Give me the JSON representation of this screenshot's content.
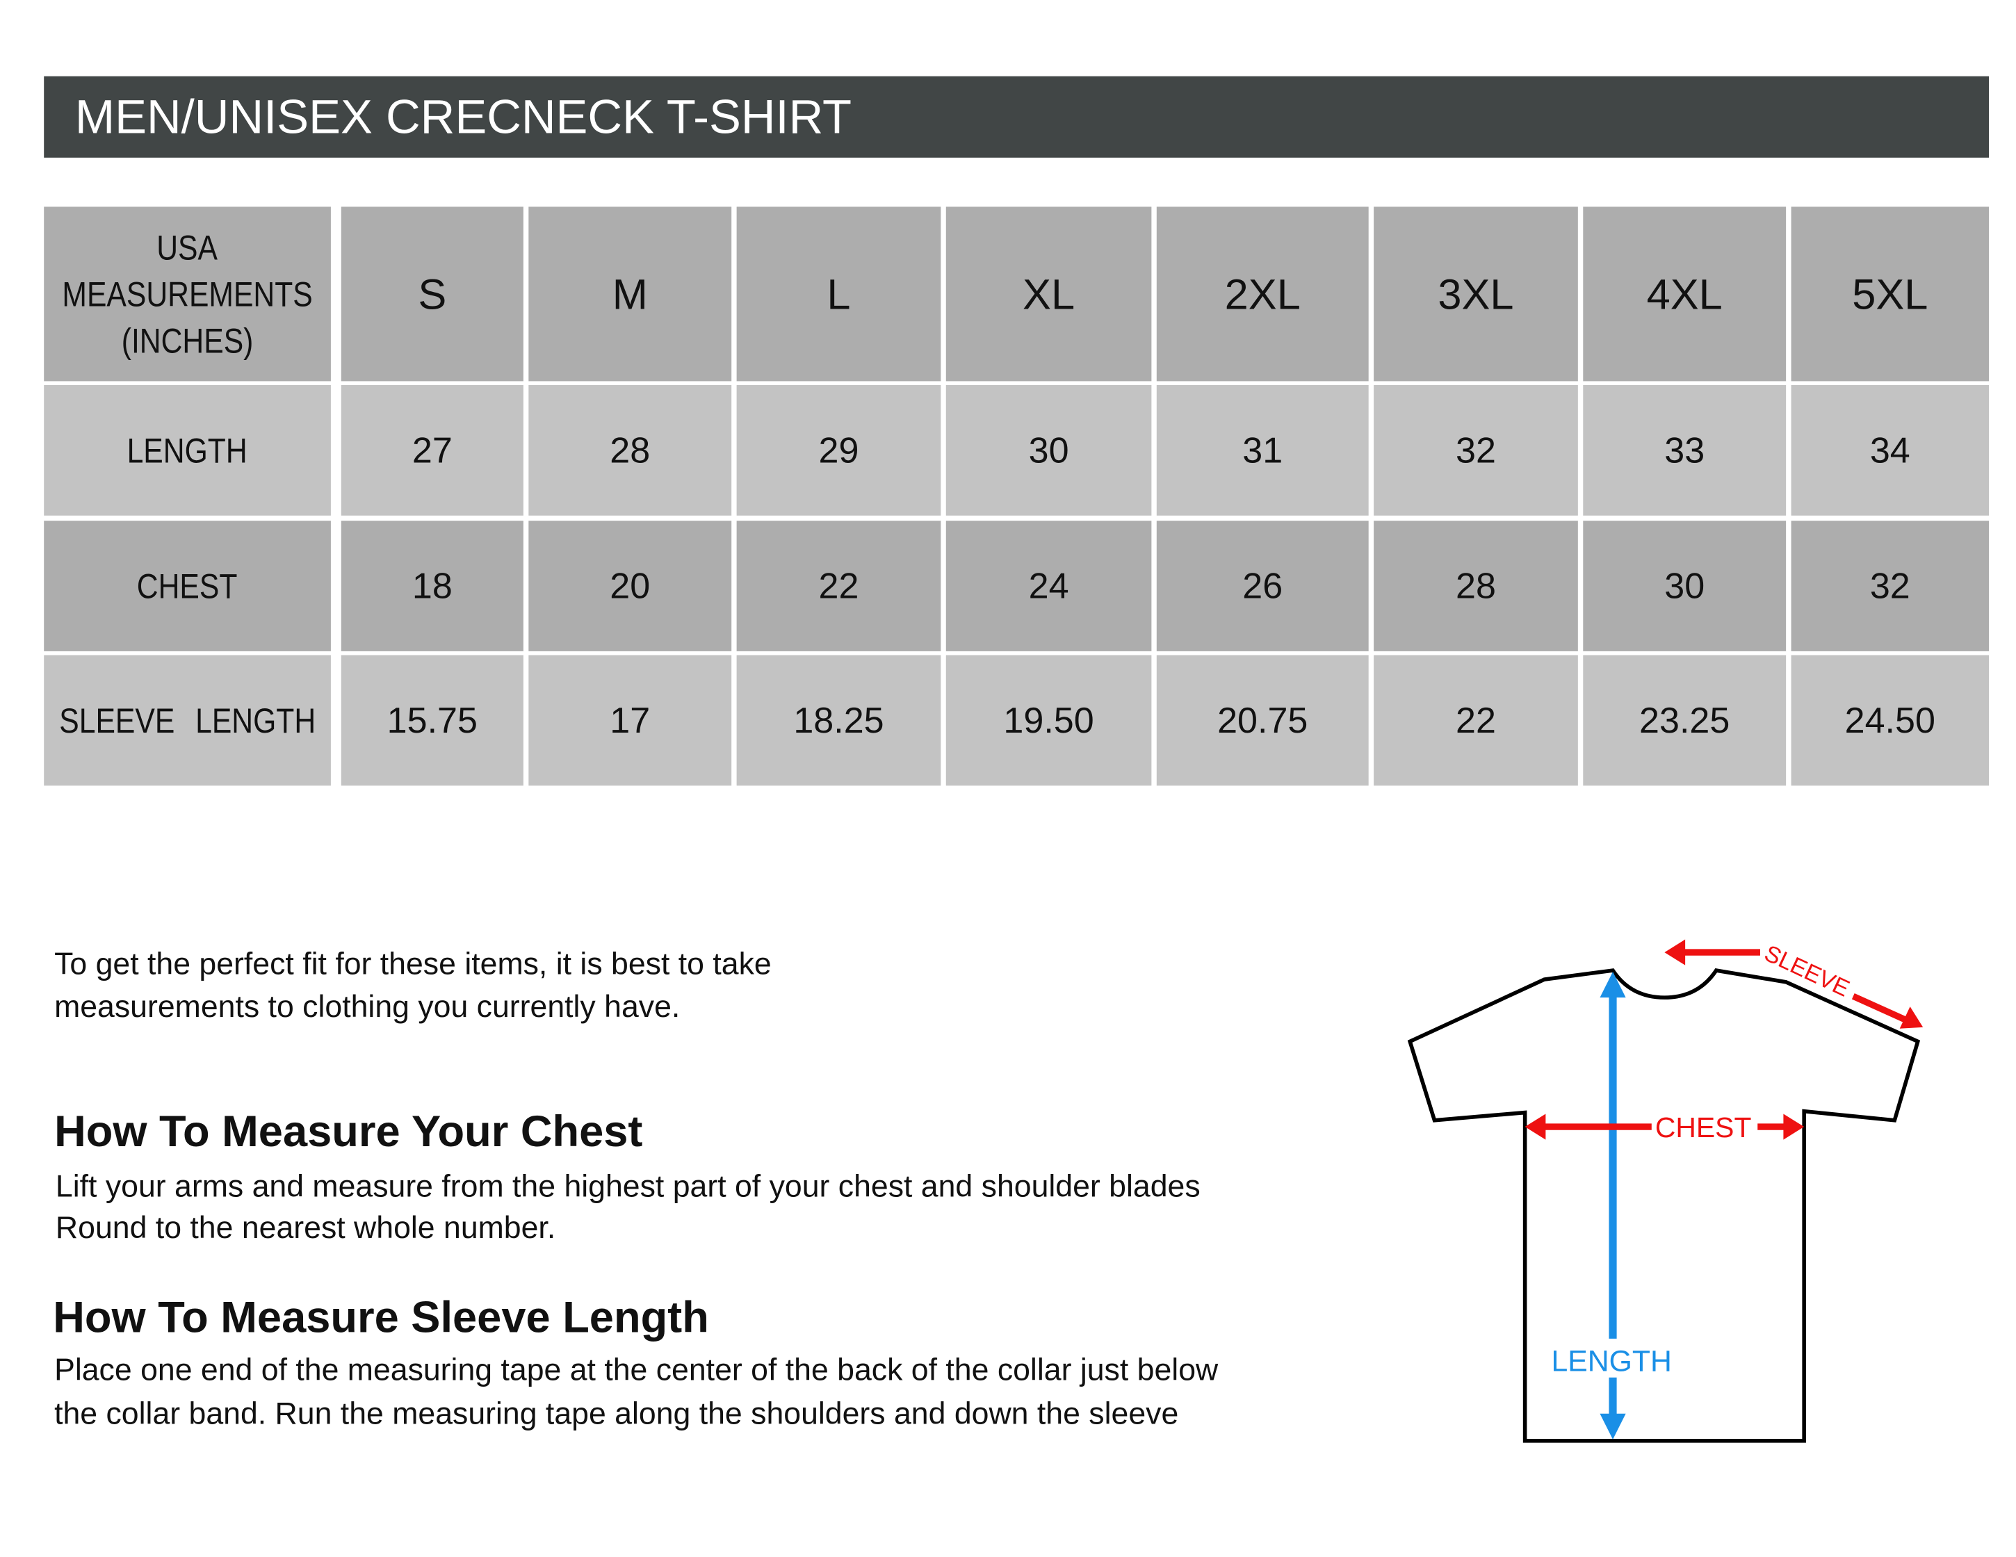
{
  "title": "MEN/UNISEX CRECNECK T-SHIRT",
  "table": {
    "corner_label": [
      "USA",
      "MEASUREMENTS",
      "(INCHES)"
    ],
    "sizes": [
      "S",
      "M",
      "L",
      "XL",
      "2XL",
      "3XL",
      "4XL",
      "5XL"
    ],
    "rows": [
      {
        "label": [
          "LENGTH"
        ],
        "values": [
          "27",
          "28",
          "29",
          "30",
          "31",
          "32",
          "33",
          "34"
        ]
      },
      {
        "label": [
          "CHEST"
        ],
        "values": [
          "18",
          "20",
          "22",
          "24",
          "26",
          "28",
          "30",
          "32"
        ]
      },
      {
        "label": [
          "SLEEVE",
          "LENGTH"
        ],
        "values": [
          "15.75",
          "17",
          "18.25",
          "19.50",
          "20.75",
          "22",
          "23.25",
          "24.50"
        ]
      }
    ]
  },
  "intro": [
    "To get the perfect fit for these items, it is best to take",
    "measurements to clothing you currently have."
  ],
  "chest_section": {
    "heading": "How To Measure Your Chest",
    "lines": [
      "Lift your arms and measure from the highest part of your chest and shoulder blades",
      "Round to the nearest whole number."
    ]
  },
  "sleeve_section": {
    "heading": "How To Measure Sleeve Length",
    "lines": [
      "Place one end of the measuring tape at the center of the back of the collar just below",
      "the collar band. Run the measuring tape along the shoulders and down the sleeve"
    ]
  },
  "diagram": {
    "sleeve_label": "SLEEVE",
    "chest_label": "CHEST",
    "length_label": "LENGTH",
    "colors": {
      "sleeve": "#ee1111",
      "chest": "#ee1111",
      "length": "#1a8fe6"
    }
  }
}
